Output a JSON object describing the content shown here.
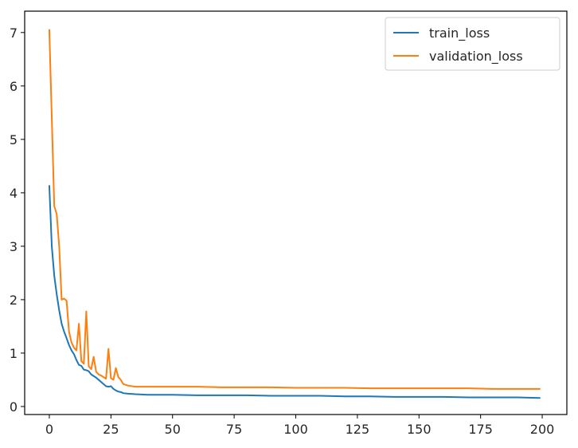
{
  "chart_data": {
    "type": "line",
    "title": "",
    "xlabel": "",
    "ylabel": "",
    "xlim": [
      -10,
      210
    ],
    "ylim": [
      -0.15,
      7.4
    ],
    "xticks": [
      0,
      25,
      50,
      75,
      100,
      125,
      150,
      175,
      200
    ],
    "yticks": [
      0,
      1,
      2,
      3,
      4,
      5,
      6,
      7
    ],
    "xtick_labels": [
      "0",
      "25",
      "50",
      "75",
      "100",
      "125",
      "150",
      "175",
      "200"
    ],
    "ytick_labels": [
      "0",
      "1",
      "2",
      "3",
      "4",
      "5",
      "6",
      "7"
    ],
    "grid": false,
    "legend_position": "top-right",
    "series": [
      {
        "name": "train_loss",
        "color": "#1f77b4",
        "x": [
          0,
          1,
          2,
          3,
          4,
          5,
          6,
          7,
          8,
          9,
          10,
          11,
          12,
          13,
          14,
          15,
          16,
          17,
          18,
          19,
          20,
          21,
          22,
          23,
          24,
          25,
          26,
          27,
          28,
          29,
          30,
          32,
          35,
          40,
          45,
          50,
          60,
          70,
          80,
          90,
          100,
          110,
          120,
          130,
          140,
          150,
          160,
          170,
          180,
          190,
          199
        ],
        "y": [
          4.13,
          3.0,
          2.45,
          2.1,
          1.8,
          1.55,
          1.4,
          1.28,
          1.15,
          1.05,
          0.98,
          0.87,
          0.78,
          0.76,
          0.69,
          0.68,
          0.66,
          0.6,
          0.57,
          0.54,
          0.5,
          0.46,
          0.42,
          0.38,
          0.37,
          0.38,
          0.33,
          0.3,
          0.28,
          0.27,
          0.25,
          0.24,
          0.23,
          0.22,
          0.22,
          0.22,
          0.21,
          0.21,
          0.21,
          0.2,
          0.2,
          0.2,
          0.19,
          0.19,
          0.18,
          0.18,
          0.18,
          0.17,
          0.17,
          0.17,
          0.16
        ]
      },
      {
        "name": "validation_loss",
        "color": "#ff7f0e",
        "x": [
          0,
          1,
          2,
          3,
          4,
          5,
          6,
          7,
          8,
          9,
          10,
          11,
          12,
          13,
          14,
          15,
          16,
          17,
          18,
          19,
          20,
          21,
          22,
          23,
          24,
          25,
          26,
          27,
          28,
          29,
          30,
          32,
          35,
          40,
          50,
          60,
          70,
          80,
          90,
          100,
          110,
          120,
          130,
          140,
          150,
          160,
          170,
          180,
          190,
          199
        ],
        "y": [
          7.05,
          5.4,
          3.75,
          3.6,
          3.0,
          2.0,
          2.02,
          1.98,
          1.4,
          1.2,
          1.1,
          1.05,
          1.55,
          0.85,
          0.8,
          1.78,
          0.75,
          0.7,
          0.93,
          0.65,
          0.6,
          0.58,
          0.55,
          0.52,
          1.08,
          0.53,
          0.5,
          0.72,
          0.55,
          0.5,
          0.42,
          0.39,
          0.37,
          0.37,
          0.37,
          0.37,
          0.36,
          0.36,
          0.36,
          0.35,
          0.35,
          0.35,
          0.34,
          0.34,
          0.34,
          0.34,
          0.34,
          0.33,
          0.33,
          0.33
        ]
      }
    ]
  }
}
